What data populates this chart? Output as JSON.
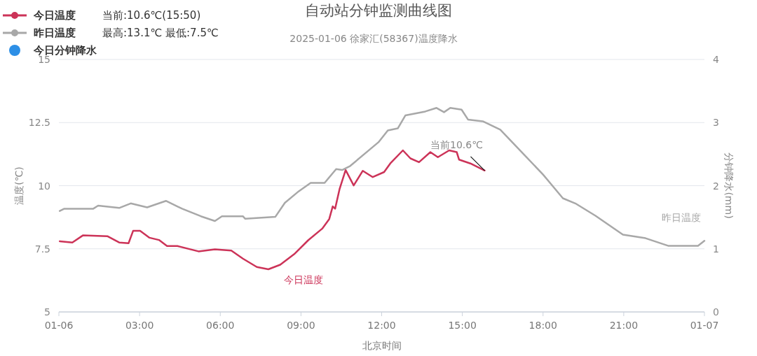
{
  "chart_data": {
    "type": "line",
    "title": "自动站分钟监测曲线图",
    "subtitle": "2025-01-06 徐家汇(58367)温度降水",
    "xlabel": "北京时间",
    "ylabel": "温度(℃)",
    "y2label": "分钟降水(mm)",
    "xlim": [
      0,
      24
    ],
    "xticks": [
      {
        "value": 0,
        "label": "01-06"
      },
      {
        "value": 3,
        "label": "03:00"
      },
      {
        "value": 6,
        "label": "06:00"
      },
      {
        "value": 9,
        "label": "09:00"
      },
      {
        "value": 12,
        "label": "12:00"
      },
      {
        "value": 15,
        "label": "15:00"
      },
      {
        "value": 18,
        "label": "18:00"
      },
      {
        "value": 21,
        "label": "21:00"
      },
      {
        "value": 24,
        "label": "01-07"
      }
    ],
    "ylim": [
      5,
      15
    ],
    "yticks": [
      5,
      7.5,
      10,
      12.5,
      15
    ],
    "y2lim": [
      0,
      4
    ],
    "y2ticks": [
      0,
      1,
      2,
      3,
      4
    ],
    "grid": "y",
    "legend": "top left",
    "marker": "none",
    "line_style": "solid",
    "annotations": [
      "当前:10.6℃(15:50)",
      "最高:13.1℃ 最低:7.5℃",
      {
        "text": "当前10.6℃",
        "x": 15.83,
        "y": 10.6
      }
    ],
    "series": [
      {
        "name": "今日温度",
        "color": "#cc3358",
        "x": [
          0.03,
          0.5,
          0.89,
          1.8,
          2.24,
          2.59,
          2.76,
          3.02,
          3.37,
          3.72,
          4.02,
          4.41,
          5.19,
          5.8,
          6.41,
          6.84,
          7.36,
          7.79,
          8.23,
          8.75,
          9.27,
          9.79,
          10.05,
          10.18,
          10.27,
          10.44,
          10.66,
          10.96,
          11.3,
          11.67,
          12.09,
          12.32,
          12.79,
          13.07,
          13.39,
          13.81,
          14.09,
          14.51,
          14.79,
          14.88,
          15.3,
          15.83
        ],
        "values": [
          7.8,
          7.75,
          8.03,
          8.0,
          7.75,
          7.72,
          8.21,
          8.21,
          7.94,
          7.85,
          7.61,
          7.61,
          7.4,
          7.48,
          7.43,
          7.11,
          6.78,
          6.69,
          6.87,
          7.29,
          7.84,
          8.3,
          8.68,
          9.18,
          9.09,
          9.88,
          10.62,
          10.01,
          10.59,
          10.34,
          10.54,
          10.88,
          11.4,
          11.08,
          10.93,
          11.33,
          11.13,
          11.4,
          11.33,
          11.03,
          10.88,
          10.6
        ]
      },
      {
        "name": "昨日温度",
        "color": "#a8a8a8",
        "x": [
          0.03,
          0.2,
          1.28,
          1.46,
          2.24,
          2.67,
          3.28,
          3.98,
          4.58,
          5.28,
          5.8,
          6.06,
          6.84,
          6.93,
          8.05,
          8.4,
          8.92,
          9.36,
          9.88,
          10.31,
          10.53,
          10.83,
          11.88,
          12.23,
          12.6,
          12.88,
          13.62,
          14.04,
          14.32,
          14.55,
          14.97,
          15.21,
          15.76,
          16.41,
          17.16,
          18.0,
          18.74,
          19.2,
          19.95,
          20.97,
          21.81,
          22.65,
          23.76,
          24.0
        ],
        "values": [
          9.0,
          9.09,
          9.09,
          9.21,
          9.12,
          9.3,
          9.14,
          9.4,
          9.09,
          8.79,
          8.6,
          8.79,
          8.79,
          8.69,
          8.77,
          9.32,
          9.78,
          10.11,
          10.11,
          10.66,
          10.62,
          10.78,
          11.72,
          12.19,
          12.27,
          12.78,
          12.94,
          13.08,
          12.91,
          13.08,
          13.01,
          12.62,
          12.55,
          12.22,
          11.38,
          10.44,
          9.5,
          9.3,
          8.81,
          8.06,
          7.92,
          7.62,
          7.62,
          7.82
        ]
      },
      {
        "name": "今日分钟降水",
        "type": "bar",
        "color": "#2d8fe6"
      }
    ]
  }
}
